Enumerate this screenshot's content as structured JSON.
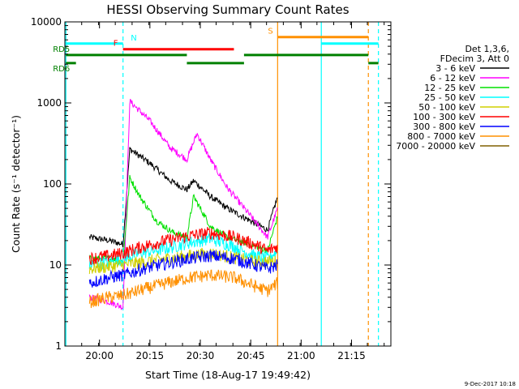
{
  "chart_data": {
    "type": "line",
    "title": "HESSI Observing Summary Count Rates",
    "xlabel": "Start Time (18-Aug-17 19:49:42)",
    "ylabel": "Count Rate (s⁻¹ detector⁻¹)",
    "yscale": "log",
    "ylim": [
      1,
      10000
    ],
    "xlim_minutes_after_start": [
      0,
      97
    ],
    "x_tick_labels": [
      "20:00",
      "20:15",
      "20:30",
      "20:45",
      "21:00",
      "21:15"
    ],
    "y_tick_labels": [
      "1",
      "10",
      "100",
      "1000",
      "10000"
    ],
    "footer_date": "9-Dec-2017 10:18",
    "legend": {
      "position": "right",
      "header": [
        "Det 1,3,6,",
        "FDecim 3, Att 0"
      ]
    },
    "series": [
      {
        "name": "3 - 6 keV",
        "color": "#000000",
        "x": [
          "19:57",
          "20:03",
          "20:07",
          "20:09",
          "20:15",
          "20:21",
          "20:26",
          "20:28",
          "20:33",
          "20:38",
          "20:45",
          "20:50",
          "20:53"
        ],
        "y": [
          22,
          20,
          18,
          270,
          180,
          110,
          85,
          110,
          70,
          50,
          35,
          27,
          70
        ]
      },
      {
        "name": "6 - 12 keV",
        "color": "#ff00ff",
        "x": [
          "19:57",
          "20:03",
          "20:07",
          "20:09",
          "20:15",
          "20:21",
          "20:26",
          "20:29",
          "20:33",
          "20:38",
          "20:45",
          "20:50",
          "20:53"
        ],
        "y": [
          4,
          3.5,
          3,
          1050,
          600,
          280,
          200,
          420,
          200,
          90,
          40,
          22,
          50
        ]
      },
      {
        "name": "12 - 25 keV",
        "color": "#00e000",
        "x": [
          "19:57",
          "20:03",
          "20:07",
          "20:09",
          "20:12",
          "20:17",
          "20:22",
          "20:26",
          "20:28",
          "20:33",
          "20:38",
          "20:45",
          "20:50",
          "20:53"
        ],
        "y": [
          12,
          12,
          11,
          120,
          70,
          35,
          25,
          22,
          70,
          30,
          22,
          18,
          15,
          40
        ]
      },
      {
        "name": "25 - 50 keV",
        "color": "#00ffff",
        "x": [
          "19:57",
          "20:03",
          "20:07",
          "20:12",
          "20:20",
          "20:27",
          "20:33",
          "20:40",
          "20:46",
          "20:50",
          "20:53"
        ],
        "y": [
          10,
          11,
          12,
          14,
          16,
          19,
          21,
          17,
          13,
          12,
          15
        ]
      },
      {
        "name": "50 - 100 keV",
        "color": "#d0d000",
        "x": [
          "19:57",
          "20:07",
          "20:20",
          "20:33",
          "20:46",
          "20:53"
        ],
        "y": [
          9,
          10,
          12,
          14,
          11,
          11
        ]
      },
      {
        "name": "100 - 300 keV",
        "color": "#ff0000",
        "x": [
          "19:57",
          "20:03",
          "20:07",
          "20:13",
          "20:20",
          "20:27",
          "20:33",
          "20:40",
          "20:46",
          "20:50",
          "20:53"
        ],
        "y": [
          12,
          13,
          14,
          17,
          20,
          23,
          25,
          22,
          18,
          15,
          17
        ]
      },
      {
        "name": "300 - 800 keV",
        "color": "#0000ff",
        "x": [
          "19:57",
          "20:03",
          "20:07",
          "20:13",
          "20:20",
          "20:27",
          "20:33",
          "20:40",
          "20:46",
          "20:50",
          "20:53"
        ],
        "y": [
          6,
          7,
          7.5,
          9,
          10.5,
          12,
          13,
          12,
          10,
          9,
          10
        ]
      },
      {
        "name": "800 - 7000 keV",
        "color": "#ff9000",
        "x": [
          "19:57",
          "20:03",
          "20:07",
          "20:13",
          "20:20",
          "20:27",
          "20:33",
          "20:40",
          "20:46",
          "20:50",
          "20:53"
        ],
        "y": [
          3.5,
          4,
          4.2,
          5,
          6,
          7,
          7.5,
          7,
          5.5,
          4.8,
          6
        ]
      },
      {
        "name": "7000 - 20000 keV",
        "color": "#806000",
        "x": [],
        "y": []
      }
    ],
    "flag_bars": [
      {
        "label": "N",
        "color": "#00ffff",
        "row": 5400,
        "segments": [
          [
            "19:50",
            "20:07"
          ],
          [
            "21:06",
            "21:23"
          ]
        ]
      },
      {
        "label": "S",
        "color": "#ff9000",
        "row": 6500,
        "segments": [
          [
            "20:53",
            "21:20"
          ]
        ]
      },
      {
        "label": "F",
        "color": "#ff0000",
        "row": 4600,
        "segments": [
          [
            "20:07",
            "20:40"
          ]
        ]
      },
      {
        "label": "RD5",
        "color": "#008000",
        "row": 3900,
        "segments": [
          [
            "19:50",
            "20:26"
          ],
          [
            "20:43",
            "21:20"
          ]
        ]
      },
      {
        "label": "RD6",
        "color": "#008000",
        "row": 3100,
        "segments": [
          [
            "19:50",
            "19:53"
          ],
          [
            "20:26",
            "20:43"
          ],
          [
            "21:20",
            "21:23"
          ]
        ]
      }
    ],
    "vertical_markers": [
      {
        "time": "19:50",
        "color": "#00ffff",
        "style": "solid"
      },
      {
        "time": "20:07",
        "color": "#00ffff",
        "style": "dashed"
      },
      {
        "time": "20:53",
        "color": "#ff9000",
        "style": "solid"
      },
      {
        "time": "21:06",
        "color": "#00ffff",
        "style": "solid"
      },
      {
        "time": "21:20",
        "color": "#ff9000",
        "style": "dashed"
      },
      {
        "time": "21:23",
        "color": "#00ffff",
        "style": "dashed"
      }
    ]
  }
}
